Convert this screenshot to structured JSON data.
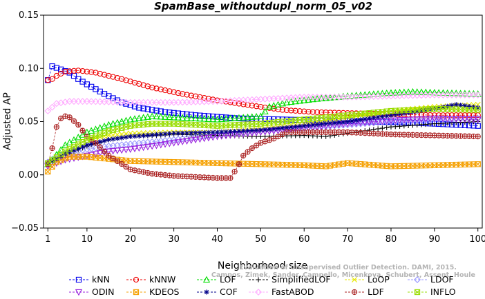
{
  "chart_data": {
    "type": "line",
    "title": "SpamBase_withoutdupl_norm_05_v02",
    "xlabel": "Neighborhood size",
    "ylabel": "Adjusted AP",
    "xlim": [
      0,
      101
    ],
    "ylim": [
      -0.05,
      0.15
    ],
    "xticks": [
      1,
      10,
      20,
      30,
      40,
      50,
      60,
      70,
      80,
      90,
      100
    ],
    "yticks": [
      -0.05,
      0.0,
      0.05,
      0.1,
      0.15
    ],
    "ytick_labels": [
      "−0.05",
      "0.00",
      "0.05",
      "0.10",
      "0.15"
    ],
    "grid": false,
    "legend_position": "bottom",
    "watermark": [
      "Evaluation of Unsupervised Outlier Detection. DAMI, 2015.",
      "Campos, Zimek, Sander, Campello, Micenkova, Schubert, Assent, Houle"
    ],
    "series": [
      {
        "name": "kNN",
        "color": "#0000ee",
        "marker": "square",
        "points": [
          [
            1,
            0.089
          ],
          [
            2,
            0.102
          ],
          [
            4,
            0.099
          ],
          [
            6,
            0.096
          ],
          [
            8,
            0.09
          ],
          [
            10,
            0.085
          ],
          [
            14,
            0.076
          ],
          [
            18,
            0.068
          ],
          [
            22,
            0.063
          ],
          [
            28,
            0.059
          ],
          [
            35,
            0.056
          ],
          [
            45,
            0.053
          ],
          [
            55,
            0.052
          ],
          [
            65,
            0.051
          ],
          [
            75,
            0.05
          ],
          [
            85,
            0.049
          ],
          [
            95,
            0.047
          ],
          [
            100,
            0.046
          ]
        ]
      },
      {
        "name": "kNNW",
        "color": "#ee0000",
        "marker": "circle",
        "points": [
          [
            1,
            0.089
          ],
          [
            2,
            0.09
          ],
          [
            3,
            0.093
          ],
          [
            5,
            0.097
          ],
          [
            8,
            0.098
          ],
          [
            12,
            0.096
          ],
          [
            18,
            0.09
          ],
          [
            25,
            0.082
          ],
          [
            32,
            0.076
          ],
          [
            40,
            0.07
          ],
          [
            48,
            0.065
          ],
          [
            55,
            0.061
          ],
          [
            62,
            0.059
          ],
          [
            70,
            0.058
          ],
          [
            80,
            0.057
          ],
          [
            90,
            0.056
          ],
          [
            100,
            0.056
          ]
        ]
      },
      {
        "name": "LOF",
        "color": "#00dd00",
        "marker": "triangle-up",
        "points": [
          [
            1,
            0.01
          ],
          [
            5,
            0.028
          ],
          [
            10,
            0.04
          ],
          [
            15,
            0.047
          ],
          [
            20,
            0.052
          ],
          [
            25,
            0.055
          ],
          [
            30,
            0.054
          ],
          [
            40,
            0.052
          ],
          [
            50,
            0.055
          ],
          [
            52,
            0.064
          ],
          [
            56,
            0.068
          ],
          [
            62,
            0.071
          ],
          [
            70,
            0.074
          ],
          [
            80,
            0.077
          ],
          [
            85,
            0.078
          ],
          [
            92,
            0.077
          ],
          [
            100,
            0.076
          ]
        ]
      },
      {
        "name": "SimplifiedLOF",
        "color": "#000000",
        "marker": "plus",
        "points": [
          [
            1,
            0.012
          ],
          [
            5,
            0.018
          ],
          [
            10,
            0.027
          ],
          [
            15,
            0.033
          ],
          [
            20,
            0.036
          ],
          [
            30,
            0.038
          ],
          [
            40,
            0.037
          ],
          [
            50,
            0.036
          ],
          [
            60,
            0.037
          ],
          [
            65,
            0.036
          ],
          [
            70,
            0.039
          ],
          [
            80,
            0.045
          ],
          [
            90,
            0.048
          ],
          [
            100,
            0.05
          ]
        ]
      },
      {
        "name": "LoOP",
        "color": "#e8e800",
        "marker": "cross",
        "points": [
          [
            1,
            0.01
          ],
          [
            5,
            0.022
          ],
          [
            10,
            0.033
          ],
          [
            15,
            0.037
          ],
          [
            20,
            0.039
          ],
          [
            30,
            0.04
          ],
          [
            40,
            0.04
          ],
          [
            50,
            0.043
          ],
          [
            60,
            0.048
          ],
          [
            70,
            0.054
          ],
          [
            80,
            0.06
          ],
          [
            90,
            0.064
          ],
          [
            100,
            0.066
          ]
        ]
      },
      {
        "name": "LDOF",
        "color": "#9999ff",
        "marker": "diamond",
        "points": [
          [
            1,
            0.012
          ],
          [
            5,
            0.02
          ],
          [
            10,
            0.024
          ],
          [
            15,
            0.027
          ],
          [
            20,
            0.029
          ],
          [
            30,
            0.033
          ],
          [
            40,
            0.038
          ],
          [
            50,
            0.041
          ],
          [
            60,
            0.044
          ],
          [
            70,
            0.047
          ],
          [
            80,
            0.05
          ],
          [
            90,
            0.052
          ],
          [
            100,
            0.053
          ]
        ]
      },
      {
        "name": "ODIN",
        "color": "#9922dd",
        "marker": "triangle-down",
        "points": [
          [
            1,
            0.008
          ],
          [
            5,
            0.014
          ],
          [
            10,
            0.018
          ],
          [
            15,
            0.022
          ],
          [
            20,
            0.024
          ],
          [
            30,
            0.03
          ],
          [
            40,
            0.036
          ],
          [
            50,
            0.04
          ],
          [
            60,
            0.044
          ],
          [
            70,
            0.048
          ],
          [
            80,
            0.051
          ],
          [
            90,
            0.053
          ],
          [
            100,
            0.052
          ]
        ]
      },
      {
        "name": "KDEOS",
        "color": "#f5a000",
        "marker": "square-x",
        "points": [
          [
            1,
            0.003
          ],
          [
            3,
            0.012
          ],
          [
            6,
            0.017
          ],
          [
            10,
            0.017
          ],
          [
            15,
            0.015
          ],
          [
            20,
            0.013
          ],
          [
            30,
            0.012
          ],
          [
            40,
            0.011
          ],
          [
            50,
            0.01
          ],
          [
            60,
            0.009
          ],
          [
            65,
            0.008
          ],
          [
            70,
            0.011
          ],
          [
            80,
            0.008
          ],
          [
            90,
            0.009
          ],
          [
            100,
            0.01
          ]
        ]
      },
      {
        "name": "COF",
        "color": "#000088",
        "marker": "asterisk",
        "points": [
          [
            1,
            0.01
          ],
          [
            5,
            0.02
          ],
          [
            10,
            0.028
          ],
          [
            15,
            0.033
          ],
          [
            20,
            0.036
          ],
          [
            30,
            0.039
          ],
          [
            40,
            0.04
          ],
          [
            50,
            0.042
          ],
          [
            60,
            0.046
          ],
          [
            70,
            0.05
          ],
          [
            80,
            0.056
          ],
          [
            90,
            0.062
          ],
          [
            95,
            0.066
          ],
          [
            100,
            0.063
          ]
        ]
      },
      {
        "name": "FastABOD",
        "color": "#ffaaff",
        "marker": "diamond",
        "points": [
          [
            1,
            0.06
          ],
          [
            3,
            0.067
          ],
          [
            6,
            0.069
          ],
          [
            10,
            0.069
          ],
          [
            20,
            0.068
          ],
          [
            30,
            0.068
          ],
          [
            40,
            0.069
          ],
          [
            50,
            0.071
          ],
          [
            60,
            0.073
          ],
          [
            70,
            0.073
          ],
          [
            80,
            0.074
          ],
          [
            90,
            0.075
          ],
          [
            100,
            0.075
          ]
        ]
      },
      {
        "name": "LDF",
        "color": "#aa2222",
        "marker": "circle-plus",
        "points": [
          [
            1,
            0.01
          ],
          [
            2,
            0.025
          ],
          [
            3,
            0.045
          ],
          [
            4,
            0.053
          ],
          [
            5,
            0.055
          ],
          [
            6,
            0.054
          ],
          [
            8,
            0.047
          ],
          [
            10,
            0.036
          ],
          [
            12,
            0.03
          ],
          [
            15,
            0.018
          ],
          [
            20,
            0.005
          ],
          [
            25,
            0.001
          ],
          [
            30,
            -0.001
          ],
          [
            35,
            -0.002
          ],
          [
            40,
            -0.003
          ],
          [
            43,
            -0.003
          ],
          [
            44,
            0.003
          ],
          [
            45,
            0.01
          ],
          [
            46,
            0.018
          ],
          [
            48,
            0.025
          ],
          [
            50,
            0.03
          ],
          [
            53,
            0.034
          ],
          [
            56,
            0.04
          ],
          [
            60,
            0.04
          ],
          [
            70,
            0.04
          ],
          [
            80,
            0.038
          ],
          [
            90,
            0.037
          ],
          [
            100,
            0.036
          ]
        ]
      },
      {
        "name": "INFLO",
        "color": "#99dd00",
        "marker": "square-x",
        "points": [
          [
            1,
            0.011
          ],
          [
            5,
            0.022
          ],
          [
            10,
            0.033
          ],
          [
            15,
            0.041
          ],
          [
            20,
            0.046
          ],
          [
            25,
            0.048
          ],
          [
            30,
            0.048
          ],
          [
            40,
            0.046
          ],
          [
            50,
            0.048
          ],
          [
            60,
            0.052
          ],
          [
            70,
            0.056
          ],
          [
            80,
            0.06
          ],
          [
            90,
            0.062
          ],
          [
            100,
            0.061
          ]
        ]
      }
    ]
  }
}
